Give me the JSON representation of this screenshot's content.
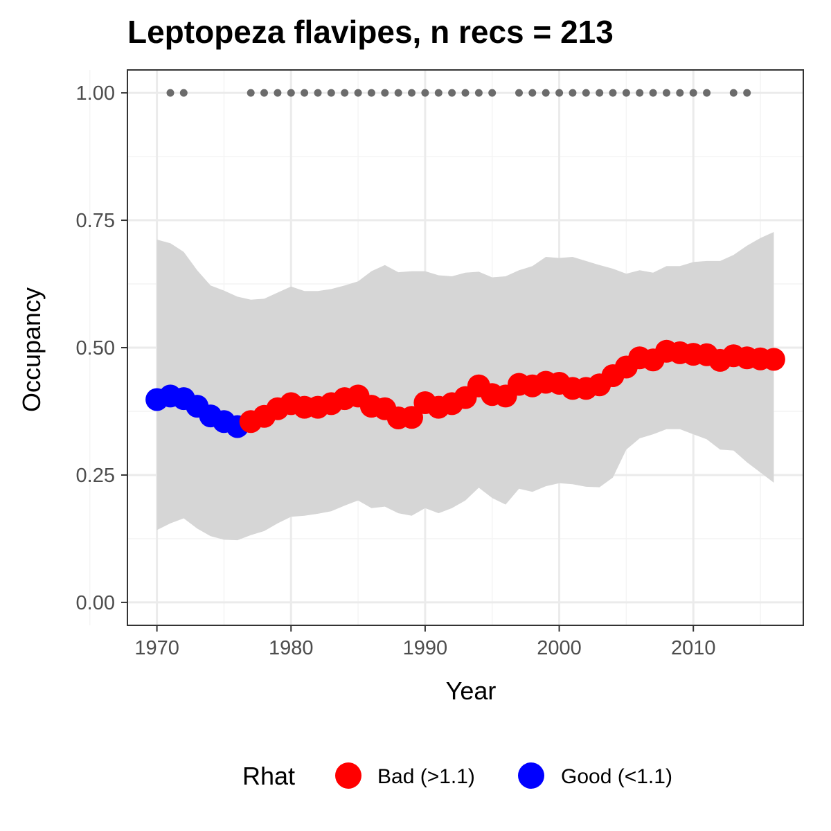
{
  "chart_data": {
    "type": "line",
    "title": "Leptopeza flavipes, n recs = 213",
    "xlabel": "Year",
    "ylabel": "Occupancy",
    "xlim": [
      1967.8,
      2018.2
    ],
    "ylim": [
      -0.045,
      1.045
    ],
    "x_ticks": [
      1970,
      1980,
      1990,
      2000,
      2010
    ],
    "x_tick_labels": [
      "1970",
      "1980",
      "1990",
      "2000",
      "2010"
    ],
    "y_ticks": [
      0,
      0.25,
      0.5,
      0.75,
      1.0
    ],
    "y_tick_labels": [
      "0.00",
      "0.25",
      "0.50",
      "0.75",
      "1.00"
    ],
    "grid": true,
    "legend": {
      "position": "bottom",
      "title": "Rhat",
      "entries": [
        {
          "label": "Bad (>1.1)",
          "color": "#ff0000"
        },
        {
          "label": "Good (<1.1)",
          "color": "#0000ff"
        }
      ]
    },
    "series": [
      {
        "x": [
          1970,
          1971,
          1972,
          1973,
          1974,
          1975,
          1976,
          1977,
          1978,
          1979,
          1980,
          1981,
          1982,
          1983,
          1984,
          1985,
          1986,
          1987,
          1988,
          1989,
          1990,
          1991,
          1992,
          1993,
          1994,
          1995,
          1996,
          1997,
          1998,
          1999,
          2000,
          2001,
          2002,
          2003,
          2004,
          2005,
          2006,
          2007,
          2008,
          2009,
          2010,
          2011,
          2012,
          2013,
          2014,
          2015,
          2016
        ],
        "y": [
          0.398,
          0.405,
          0.4,
          0.385,
          0.366,
          0.355,
          0.345,
          0.355,
          0.365,
          0.38,
          0.39,
          0.383,
          0.383,
          0.39,
          0.4,
          0.405,
          0.385,
          0.38,
          0.362,
          0.363,
          0.392,
          0.383,
          0.39,
          0.402,
          0.425,
          0.408,
          0.405,
          0.428,
          0.425,
          0.432,
          0.43,
          0.42,
          0.42,
          0.427,
          0.445,
          0.462,
          0.48,
          0.476,
          0.493,
          0.49,
          0.487,
          0.486,
          0.475,
          0.484,
          0.48,
          0.478,
          0.477
        ],
        "rhat": [
          "Good",
          "Good",
          "Good",
          "Good",
          "Good",
          "Good",
          "Good",
          "Bad",
          "Bad",
          "Bad",
          "Bad",
          "Bad",
          "Bad",
          "Bad",
          "Bad",
          "Bad",
          "Bad",
          "Bad",
          "Bad",
          "Bad",
          "Bad",
          "Bad",
          "Bad",
          "Bad",
          "Bad",
          "Bad",
          "Bad",
          "Bad",
          "Bad",
          "Bad",
          "Bad",
          "Bad",
          "Bad",
          "Bad",
          "Bad",
          "Bad",
          "Bad",
          "Bad",
          "Bad",
          "Bad",
          "Bad",
          "Bad",
          "Bad",
          "Bad",
          "Bad",
          "Bad",
          "Bad"
        ],
        "lower": [
          0.142,
          0.155,
          0.165,
          0.145,
          0.13,
          0.123,
          0.122,
          0.132,
          0.14,
          0.155,
          0.168,
          0.17,
          0.174,
          0.179,
          0.19,
          0.2,
          0.185,
          0.188,
          0.175,
          0.17,
          0.185,
          0.175,
          0.185,
          0.2,
          0.225,
          0.205,
          0.192,
          0.223,
          0.217,
          0.228,
          0.234,
          0.232,
          0.227,
          0.226,
          0.245,
          0.3,
          0.322,
          0.33,
          0.34,
          0.34,
          0.33,
          0.32,
          0.3,
          0.298,
          0.275,
          0.255,
          0.235
        ],
        "upper": [
          0.712,
          0.705,
          0.688,
          0.652,
          0.622,
          0.612,
          0.6,
          0.594,
          0.596,
          0.608,
          0.62,
          0.611,
          0.611,
          0.615,
          0.622,
          0.63,
          0.65,
          0.662,
          0.648,
          0.65,
          0.65,
          0.642,
          0.64,
          0.647,
          0.649,
          0.638,
          0.64,
          0.652,
          0.66,
          0.678,
          0.676,
          0.678,
          0.67,
          0.662,
          0.655,
          0.645,
          0.652,
          0.647,
          0.66,
          0.66,
          0.668,
          0.67,
          0.67,
          0.682,
          0.7,
          0.715,
          0.727
        ]
      }
    ],
    "record_years": [
      1971,
      1972,
      1977,
      1978,
      1979,
      1980,
      1981,
      1982,
      1983,
      1984,
      1985,
      1986,
      1987,
      1988,
      1989,
      1990,
      1991,
      1992,
      1993,
      1994,
      1995,
      1997,
      1998,
      1999,
      2000,
      2001,
      2002,
      2003,
      2004,
      2005,
      2006,
      2007,
      2008,
      2009,
      2010,
      2011,
      2013,
      2014
    ],
    "record_y": 1.0,
    "colors": {
      "bad": "#ff0000",
      "good": "#0000ff",
      "ribbon": "#d6d6d6",
      "records": "#6b6b6b",
      "grid_major": "#ebebeb",
      "grid_minor": "#f4f4f4",
      "panel_border": "#333333"
    }
  }
}
